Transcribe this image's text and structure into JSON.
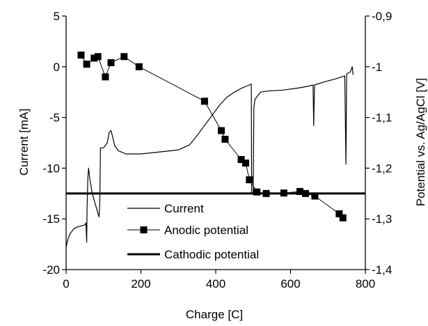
{
  "chart_data": {
    "type": "line",
    "xlabel": "Charge [C]",
    "ylabel_left": "Current  [mA]",
    "ylabel_right": "Potential vs. Ag/AgCl [V]",
    "xlim": [
      0,
      800
    ],
    "ylim_left": [
      -20,
      5
    ],
    "ylim_right": [
      -1.4,
      -0.9
    ],
    "x_ticks": [
      0,
      200,
      400,
      600,
      800
    ],
    "x_tick_labels": [
      "0",
      "200",
      "400",
      "600",
      "800"
    ],
    "y_left_ticks": [
      -20,
      -15,
      -10,
      -5,
      0,
      5
    ],
    "y_left_tick_labels": [
      "-20",
      "-15",
      "-10",
      "-5",
      "0",
      "5"
    ],
    "y_right_ticks": [
      -1.4,
      -1.3,
      -1.2,
      -1.1,
      -1.0,
      -0.9
    ],
    "y_right_tick_labels": [
      "-1,4",
      "-1,3",
      "-1,2",
      "-1,1",
      "-1",
      "-0,9"
    ],
    "grid": false,
    "legend_position": "bottom-center",
    "series": [
      {
        "name": "Current",
        "axis": "left",
        "style": "thin-line",
        "color": "#000000",
        "points": [
          [
            0,
            -17.8
          ],
          [
            5,
            -17.0
          ],
          [
            10,
            -16.5
          ],
          [
            20,
            -16.0
          ],
          [
            30,
            -15.8
          ],
          [
            40,
            -15.7
          ],
          [
            50,
            -15.6
          ],
          [
            53,
            -15.4
          ],
          [
            55,
            -17.3
          ],
          [
            56,
            -14.0
          ],
          [
            58,
            -11.0
          ],
          [
            60,
            -10.0
          ],
          [
            63,
            -11.0
          ],
          [
            70,
            -12.5
          ],
          [
            80,
            -13.8
          ],
          [
            88,
            -14.8
          ],
          [
            90,
            -13.5
          ],
          [
            92,
            -8.0
          ],
          [
            100,
            -8.0
          ],
          [
            110,
            -7.5
          ],
          [
            115,
            -6.5
          ],
          [
            120,
            -6.3
          ],
          [
            125,
            -7.0
          ],
          [
            130,
            -7.8
          ],
          [
            140,
            -8.3
          ],
          [
            160,
            -8.6
          ],
          [
            200,
            -8.6
          ],
          [
            250,
            -8.4
          ],
          [
            300,
            -8.2
          ],
          [
            330,
            -7.7
          ],
          [
            350,
            -6.8
          ],
          [
            370,
            -5.8
          ],
          [
            390,
            -4.8
          ],
          [
            410,
            -3.8
          ],
          [
            430,
            -3.0
          ],
          [
            450,
            -2.5
          ],
          [
            470,
            -2.1
          ],
          [
            490,
            -1.8
          ],
          [
            495,
            -1.7
          ],
          [
            496,
            -12.5
          ],
          [
            500,
            -12.6
          ],
          [
            502,
            -4.0
          ],
          [
            505,
            -3.2
          ],
          [
            520,
            -2.5
          ],
          [
            540,
            -2.4
          ],
          [
            580,
            -2.3
          ],
          [
            620,
            -2.1
          ],
          [
            650,
            -1.9
          ],
          [
            660,
            -1.8
          ],
          [
            662,
            -5.8
          ],
          [
            664,
            -1.8
          ],
          [
            690,
            -1.5
          ],
          [
            720,
            -1.2
          ],
          [
            745,
            -0.9
          ],
          [
            748,
            -9.6
          ],
          [
            750,
            -0.7
          ],
          [
            760,
            -0.5
          ],
          [
            765,
            0.0
          ],
          [
            767,
            -0.8
          ]
        ]
      },
      {
        "name": "Anodic potential",
        "axis": "right",
        "style": "line-square-markers",
        "color": "#000000",
        "points": [
          [
            40,
            -0.977
          ],
          [
            55,
            -0.995
          ],
          [
            75,
            -0.983
          ],
          [
            85,
            -0.98
          ],
          [
            105,
            -1.02
          ],
          [
            120,
            -0.992
          ],
          [
            155,
            -0.98
          ],
          [
            195,
            -1.0
          ],
          [
            370,
            -1.068
          ],
          [
            415,
            -1.126
          ],
          [
            425,
            -1.143
          ],
          [
            468,
            -1.183
          ],
          [
            480,
            -1.19
          ],
          [
            490,
            -1.223
          ],
          [
            510,
            -1.247
          ],
          [
            535,
            -1.25
          ],
          [
            582,
            -1.249
          ],
          [
            625,
            -1.246
          ],
          [
            640,
            -1.25
          ],
          [
            665,
            -1.255
          ],
          [
            730,
            -1.29
          ],
          [
            740,
            -1.298
          ]
        ]
      },
      {
        "name": "Cathodic potential",
        "axis": "right",
        "style": "thick-line",
        "color": "#000000",
        "points": [
          [
            0,
            -1.25
          ],
          [
            800,
            -1.25
          ]
        ]
      }
    ]
  }
}
